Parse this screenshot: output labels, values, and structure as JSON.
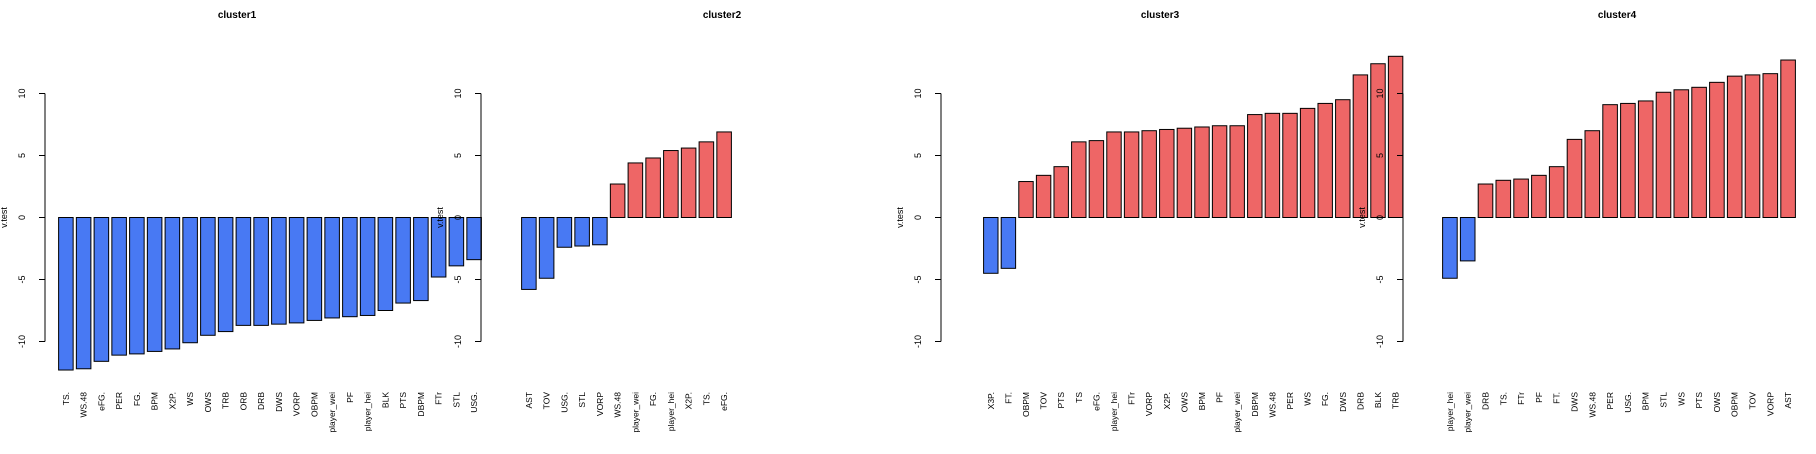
{
  "colors": {
    "negative": "#4879f3",
    "positive": "#ee6666",
    "stroke": "#000000"
  },
  "chart_data": [
    {
      "type": "bar",
      "title": "cluster1",
      "ylabel": "v.test",
      "ylim": [
        -13,
        13
      ],
      "yticks": [
        -10,
        -5,
        0,
        5,
        10
      ],
      "categories": [
        "TS.",
        "WS.48",
        "eFG.",
        "PER",
        "FG.",
        "BPM",
        "X2P.",
        "WS",
        "OWS",
        "TRB",
        "ORB",
        "DRB",
        "DWS",
        "VORP",
        "OBPM",
        "player_wei",
        "PF",
        "player_hei",
        "BLK",
        "PTS",
        "DBPM",
        "FTr",
        "STL",
        "USG."
      ],
      "values": [
        -12.3,
        -12.2,
        -11.6,
        -11.1,
        -11.0,
        -10.8,
        -10.6,
        -10.1,
        -9.5,
        -9.2,
        -8.7,
        -8.7,
        -8.6,
        -8.5,
        -8.3,
        -8.1,
        -8.0,
        -7.9,
        -7.5,
        -6.9,
        -6.7,
        -4.8,
        -3.9,
        -3.4
      ]
    },
    {
      "type": "bar",
      "title": "cluster2",
      "ylabel": "v.test",
      "ylim": [
        -13,
        13
      ],
      "yticks": [
        -10,
        -5,
        0,
        5,
        10
      ],
      "categories": [
        "AST",
        "TOV",
        "USG.",
        "STL",
        "VORP",
        "WS.48",
        "player_wei",
        "FG.",
        "player_hei",
        "X2P.",
        "TS.",
        "eFG."
      ],
      "values": [
        -5.8,
        -4.9,
        -2.4,
        -2.3,
        -2.2,
        2.7,
        4.4,
        4.8,
        5.4,
        5.6,
        6.1,
        6.9
      ]
    },
    {
      "type": "bar",
      "title": "cluster3",
      "ylabel": "v.test",
      "ylim": [
        -13,
        13
      ],
      "yticks": [
        -10,
        -5,
        0,
        5,
        10
      ],
      "categories": [
        "X3P.",
        "FT.",
        "OBPM",
        "TOV",
        "PTS",
        "TS",
        "eFG.",
        "player_hei",
        "FTr",
        "VORP",
        "X2P.",
        "OWS",
        "BPM",
        "PF",
        "player_wei",
        "DBPM",
        "WS.48",
        "PER",
        "WS",
        "FG.",
        "DWS",
        "DRB",
        "BLK",
        "TRB"
      ],
      "values": [
        -4.5,
        -4.1,
        2.9,
        3.4,
        4.1,
        6.1,
        6.2,
        6.9,
        6.9,
        7.0,
        7.1,
        7.2,
        7.3,
        7.4,
        7.4,
        8.3,
        8.4,
        8.4,
        8.8,
        9.2,
        9.5,
        11.5,
        12.4,
        13.0
      ]
    },
    {
      "type": "bar",
      "title": "cluster4",
      "ylabel": "v.test",
      "ylim": [
        -13,
        13
      ],
      "yticks": [
        -10,
        -5,
        0,
        5,
        10
      ],
      "categories": [
        "player_hei",
        "player_wei",
        "DRB",
        "TS.",
        "FTr",
        "PF",
        "FT.",
        "DWS",
        "WS.48",
        "PER",
        "USG.",
        "BPM",
        "STL",
        "WS",
        "PTS",
        "OWS",
        "OBPM",
        "TOV",
        "VORP",
        "AST"
      ],
      "values": [
        -4.9,
        -3.5,
        2.7,
        3.0,
        3.1,
        3.4,
        4.1,
        6.3,
        7.0,
        9.1,
        9.2,
        9.4,
        10.1,
        10.3,
        10.5,
        10.9,
        11.4,
        11.5,
        11.6,
        12.7
      ]
    }
  ]
}
